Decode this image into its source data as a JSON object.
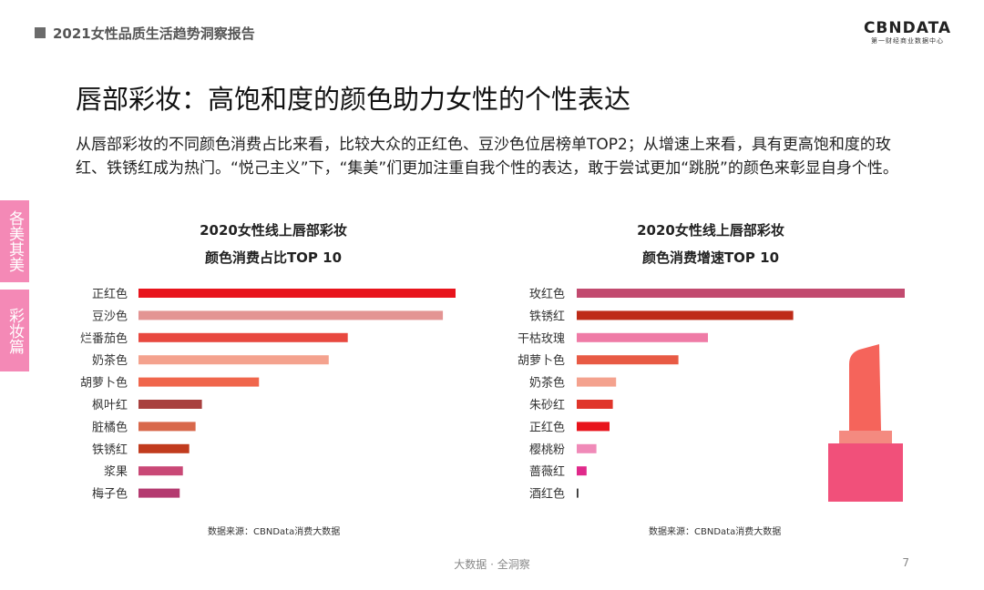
{
  "header": {
    "report_title": "2021女性品质生活趋势洞察报告"
  },
  "logo": {
    "main": "CBNDATA",
    "sub": "第一财经商业数据中心"
  },
  "page_title": "唇部彩妆：高饱和度的颜色助力女性的个性表达",
  "description": "从唇部彩妆的不同颜色消费占比来看，比较大众的正红色、豆沙色位居榜单TOP2；从增速上来看，具有更高饱和度的玫红、铁锈红成为热门。“悦己主义”下，“集美”们更加注重自我个性的表达，敢于尝试更加“跳脱”的颜色来彰显自身个性。",
  "side_tabs": [
    "各美其美",
    "彩妆篇"
  ],
  "charts": [
    {
      "title_line1": "2020女性线上唇部彩妆",
      "title_line2": "颜色消费占比TOP 10",
      "source": "数据来源：CBNData消费大数据"
    },
    {
      "title_line1": "2020女性线上唇部彩妆",
      "title_line2": "颜色消费增速TOP 10",
      "source": "数据来源：CBNData消费大数据"
    }
  ],
  "footer": {
    "text": "大数据 · 全洞察",
    "page_number": "7"
  },
  "chart_data": [
    {
      "type": "bar",
      "orientation": "horizontal",
      "title": "2020女性线上唇部彩妆 颜色消费占比TOP 10",
      "categories": [
        "正红色",
        "豆沙色",
        "烂番茄色",
        "奶茶色",
        "胡萝卜色",
        "枫叶红",
        "脏橘色",
        "铁锈红",
        "浆果",
        "梅子色"
      ],
      "values": [
        100,
        96,
        66,
        60,
        38,
        20,
        18,
        16,
        14,
        13
      ],
      "colors": [
        "#e8141c",
        "#e39493",
        "#e8483f",
        "#f4a28e",
        "#f0664c",
        "#a8403e",
        "#d8684b",
        "#c13b1e",
        "#c94876",
        "#b43a70"
      ],
      "xlim": [
        0,
        100
      ],
      "grid": false,
      "axis_labels_visible": false
    },
    {
      "type": "bar",
      "orientation": "horizontal",
      "title": "2020女性线上唇部彩妆 颜色消费增速TOP 10",
      "categories": [
        "玫红色",
        "铁锈红",
        "干枯玫瑰",
        "胡萝卜色",
        "奶茶色",
        "朱砂红",
        "正红色",
        "樱桃粉",
        "蔷薇红",
        "酒红色"
      ],
      "values": [
        100,
        66,
        40,
        31,
        12,
        11,
        10,
        6,
        3,
        0.5
      ],
      "colors": [
        "#c24a6f",
        "#be2b18",
        "#ef7ba6",
        "#e85a44",
        "#f4a28e",
        "#e0352a",
        "#e8141c",
        "#f08ab8",
        "#e0298a",
        "#333333"
      ],
      "xlim": [
        0,
        100
      ],
      "grid": false,
      "axis_labels_visible": false
    }
  ],
  "decoration": {
    "lipstick_icon": "lipstick-icon",
    "lipstick_colors": [
      "#f5645b",
      "#f48a80",
      "#f1507a"
    ]
  }
}
